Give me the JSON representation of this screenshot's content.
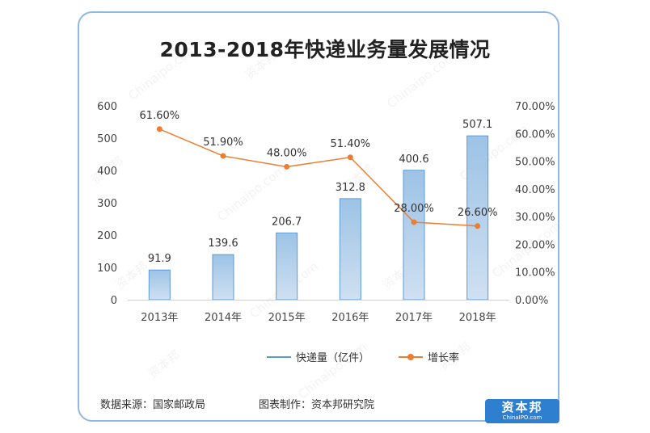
{
  "title": "2013-2018年快递业务量发展情况",
  "chart_data": {
    "type": "bar+line",
    "categories": [
      "2013年",
      "2014年",
      "2015年",
      "2016年",
      "2017年",
      "2018年"
    ],
    "series": [
      {
        "name": "快递量（亿件",
        "type": "bar",
        "axis": "left",
        "values": [
          91.9,
          139.6,
          206.7,
          312.8,
          400.6,
          507.1
        ],
        "labels": [
          "91.9",
          "139.6",
          "206.7",
          "312.8",
          "400.6",
          "507.1"
        ]
      },
      {
        "name": "增长率",
        "type": "line",
        "axis": "right",
        "values": [
          61.6,
          51.9,
          48.0,
          51.4,
          28.0,
          26.6
        ],
        "labels": [
          "61.60%",
          "51.90%",
          "48.00%",
          "51.40%",
          "28.00%",
          "26.60%"
        ]
      }
    ],
    "left_axis": {
      "ylim": [
        0,
        600
      ],
      "ticks": [
        "0",
        "100",
        "200",
        "300",
        "400",
        "500",
        "600"
      ]
    },
    "right_axis": {
      "ylim": [
        0,
        70
      ],
      "ticks": [
        "0.00%",
        "10.00%",
        "20.00%",
        "30.00%",
        "40.00%",
        "50.00%",
        "60.00%",
        "70.00%"
      ]
    },
    "legend": "bottom",
    "grid": false,
    "colors": {
      "bar": "#5b9bd5",
      "line": "#ed7d31"
    }
  },
  "legend": {
    "bar_label": "快递量（亿件）",
    "line_label": "增长率"
  },
  "footer": {
    "source": "数据来源：国家邮政局",
    "maker": "图表制作：资本邦研究院"
  },
  "logo": {
    "main": "资本邦",
    "sub": "ChinaIPO.com"
  },
  "watermarks": [
    "Chinaipo.com",
    "资本邦"
  ]
}
